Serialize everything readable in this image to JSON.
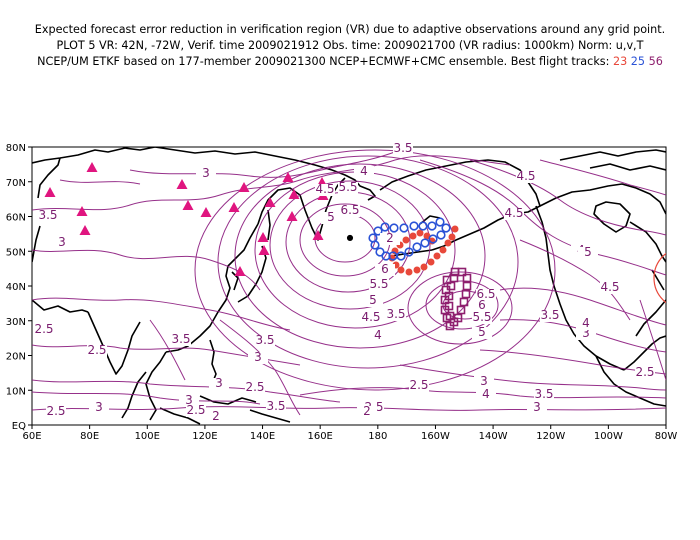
{
  "header": {
    "line1": "Expected forecast error reduction in verification region (VR) due to adaptive observations around any grid point.",
    "line2": "PLOT 5 VR: 42N, -72W, Verif. time 2009021912 Obs. time: 2009021700 (VR radius: 1000km) Norm: u,v,T",
    "line3_prefix": "NCEP/UM ETKF based on 177-member 2009021300 NCEP+ECMWF+CMC ensemble. Best flight tracks:",
    "track1": "23",
    "track2": "25",
    "track3": "56",
    "track1_color": "#e8483a",
    "track2_color": "#2a52d6",
    "track3_color": "#8e1f6e"
  },
  "map": {
    "lon_labels": [
      "60E",
      "80E",
      "100E",
      "120E",
      "140E",
      "160E",
      "180",
      "160W",
      "140W",
      "120W",
      "100W",
      "80W"
    ],
    "lat_labels": [
      "80N",
      "70N",
      "60N",
      "50N",
      "40N",
      "30N",
      "20N",
      "10N",
      "EQ"
    ],
    "contour_color": "#8b1a7e",
    "contour_labels": [
      "3.5",
      "4",
      "4.5",
      "3",
      "3.5",
      "3",
      "5.5",
      "6.5",
      "5",
      "4.5",
      "6",
      "5.5",
      "5",
      "4.5",
      "4",
      "3.5",
      "6.5",
      "6",
      "5.5",
      "5",
      "4.5",
      "4",
      "3.5",
      "3",
      "2.5",
      "2.5",
      "3.5",
      "3",
      "3",
      "2.5",
      "2.5",
      "3",
      "4",
      "3.5",
      "3",
      "2.5",
      "3",
      "2.5",
      "2",
      "3.5",
      "4.5",
      "5",
      "4",
      "3.5",
      "2.5",
      "3",
      "2.5",
      "2",
      "2"
    ],
    "verification_marker": "red circle",
    "marker_colors": {
      "triangles": "#e0157f",
      "red_dots": "#e8483a",
      "blue_circles": "#2a52d6",
      "squares": "#8e1f6e"
    }
  }
}
